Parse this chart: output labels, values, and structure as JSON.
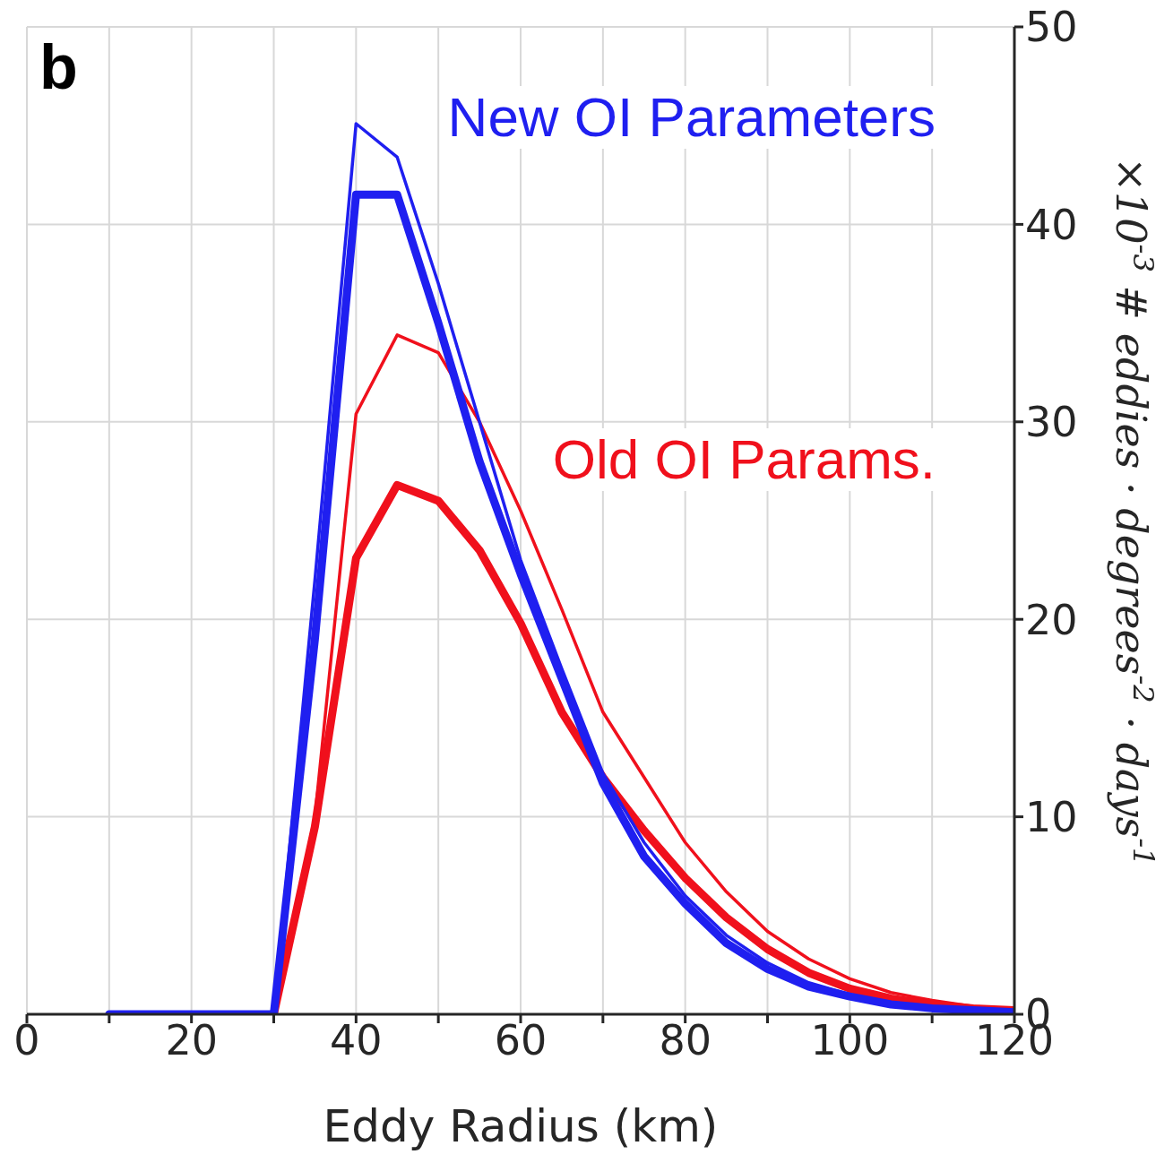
{
  "chart_data": {
    "type": "line",
    "x": [
      10,
      15,
      20,
      25,
      30,
      35,
      40,
      45,
      50,
      55,
      60,
      65,
      70,
      75,
      80,
      85,
      90,
      95,
      100,
      105,
      110,
      115,
      120
    ],
    "series": [
      {
        "color": "#f0101c",
        "values": [
          null,
          null,
          null,
          null,
          0,
          10,
          30.4,
          34.4,
          33.5,
          30,
          25.5,
          20.5,
          15.3,
          12,
          8.7,
          6.2,
          4.2,
          2.8,
          1.8,
          1.1,
          0.7,
          0.4,
          0.2
        ]
      },
      {
        "name": "Old OI Params.",
        "color": "#f0101c",
        "values": [
          null,
          null,
          null,
          null,
          0,
          9.5,
          23.1,
          26.8,
          26,
          23.5,
          19.8,
          15.3,
          12,
          9.3,
          6.9,
          4.9,
          3.3,
          2.1,
          1.3,
          0.8,
          0.5,
          0.3,
          0.2
        ]
      },
      {
        "color": "#1f1ff0",
        "values": [
          null,
          null,
          null,
          null,
          0,
          22,
          45.1,
          43.4,
          37,
          30,
          23,
          17.5,
          12.2,
          8.7,
          6,
          4,
          2.6,
          1.6,
          1,
          0.6,
          0.4,
          0.2,
          0.1
        ]
      },
      {
        "name": "New OI Parameters",
        "color": "#1f1ff0",
        "values": [
          0,
          0,
          0,
          0,
          0,
          19,
          41.5,
          41.5,
          35,
          28,
          22.3,
          17,
          11.7,
          8,
          5.6,
          3.6,
          2.3,
          1.4,
          0.9,
          0.5,
          0.3,
          0.2,
          0.1
        ]
      }
    ],
    "xlabel": "Eddy Radius (km)",
    "ylabel": "×10$^{-3}$ # eddies · degrees$^{-2}$ · days$^{-1}$",
    "annotations": [
      "b"
    ],
    "xlim": [
      0,
      120
    ],
    "xticks": [
      0,
      {
        "value": 10,
        "label": null
      },
      20,
      {
        "value": 30,
        "label": null
      },
      40,
      {
        "value": 50,
        "label": null
      },
      60,
      {
        "value": 70,
        "label": null
      },
      80,
      {
        "value": 90,
        "label": null
      },
      100,
      {
        "value": 110,
        "label": null
      },
      120
    ],
    "ylim": [
      0,
      50
    ],
    "yticks": [
      0,
      10,
      20,
      30,
      40,
      50
    ],
    "grid": true,
    "marker": "none",
    "line_style": "solid"
  }
}
